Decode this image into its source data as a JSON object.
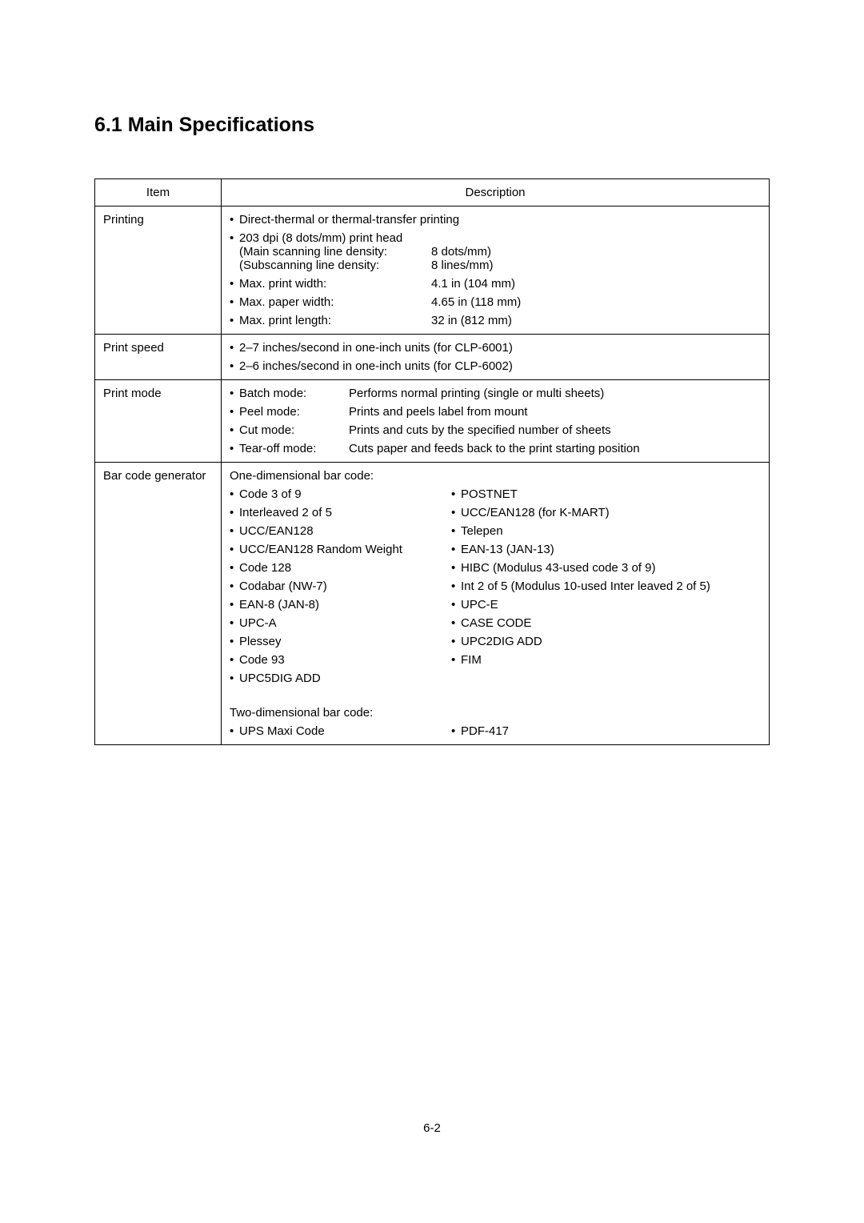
{
  "heading": "6.1  Main Specifications",
  "table": {
    "headers": {
      "item": "Item",
      "desc": "Description"
    },
    "printing": {
      "label": "Printing",
      "l1": "Direct-thermal or thermal-transfer printing",
      "l2a": "203 dpi (8 dots/mm) print head",
      "l2b_lab": "(Main scanning line density:",
      "l2b_val": "8 dots/mm)",
      "l2c_lab": "(Subscanning line density:",
      "l2c_val": "8 lines/mm)",
      "l3_lab": "Max. print width:",
      "l3_val": "4.1 in (104 mm)",
      "l4_lab": "Max. paper width:",
      "l4_val": "4.65 in (118 mm)",
      "l5_lab": "Max. print length:",
      "l5_val": "32 in (812 mm)"
    },
    "speed": {
      "label": "Print speed",
      "l1": "2–7 inches/second in one-inch units (for CLP-6001)",
      "l2": "2–6 inches/second in one-inch units (for CLP-6002)"
    },
    "mode": {
      "label": "Print mode",
      "m1_lab": "Batch mode:",
      "m1_desc": "Performs normal printing (single or multi sheets)",
      "m2_lab": "Peel mode:",
      "m2_desc": "Prints and peels label from mount",
      "m3_lab": "Cut mode:",
      "m3_desc": "Prints and cuts by the specified number of sheets",
      "m4_lab": "Tear-off mode:",
      "m4_desc": "Cuts paper and feeds back to the print starting position"
    },
    "barcode": {
      "label": "Bar code generator",
      "one_d_header": "One-dimensional bar code:",
      "two_d_header": "Two-dimensional bar code:",
      "rows": [
        {
          "c1": "Code 3 of 9",
          "c2": "POSTNET"
        },
        {
          "c1": "Interleaved 2 of 5",
          "c2": "UCC/EAN128 (for K-MART)"
        },
        {
          "c1": "UCC/EAN128",
          "c2": "Telepen"
        },
        {
          "c1": "UCC/EAN128 Random Weight",
          "c2": "EAN-13 (JAN-13)"
        },
        {
          "c1": "Code 128",
          "c2": "HIBC (Modulus 43-used code 3 of 9)"
        },
        {
          "c1": "Codabar (NW-7)",
          "c2": "Int 2 of 5 (Modulus 10-used Inter leaved 2 of 5)"
        },
        {
          "c1": "EAN-8 (JAN-8)",
          "c2": "UPC-E"
        },
        {
          "c1": "UPC-A",
          "c2": "CASE CODE"
        },
        {
          "c1": "Plessey",
          "c2": "UPC2DIG ADD"
        },
        {
          "c1": "Code 93",
          "c2": "FIM"
        },
        {
          "c1": "UPC5DIG ADD",
          "c2": ""
        }
      ],
      "two_d_rows": [
        {
          "c1": "UPS Maxi Code",
          "c2": "PDF-417"
        }
      ]
    }
  },
  "page_number": "6-2",
  "bullet": "•"
}
